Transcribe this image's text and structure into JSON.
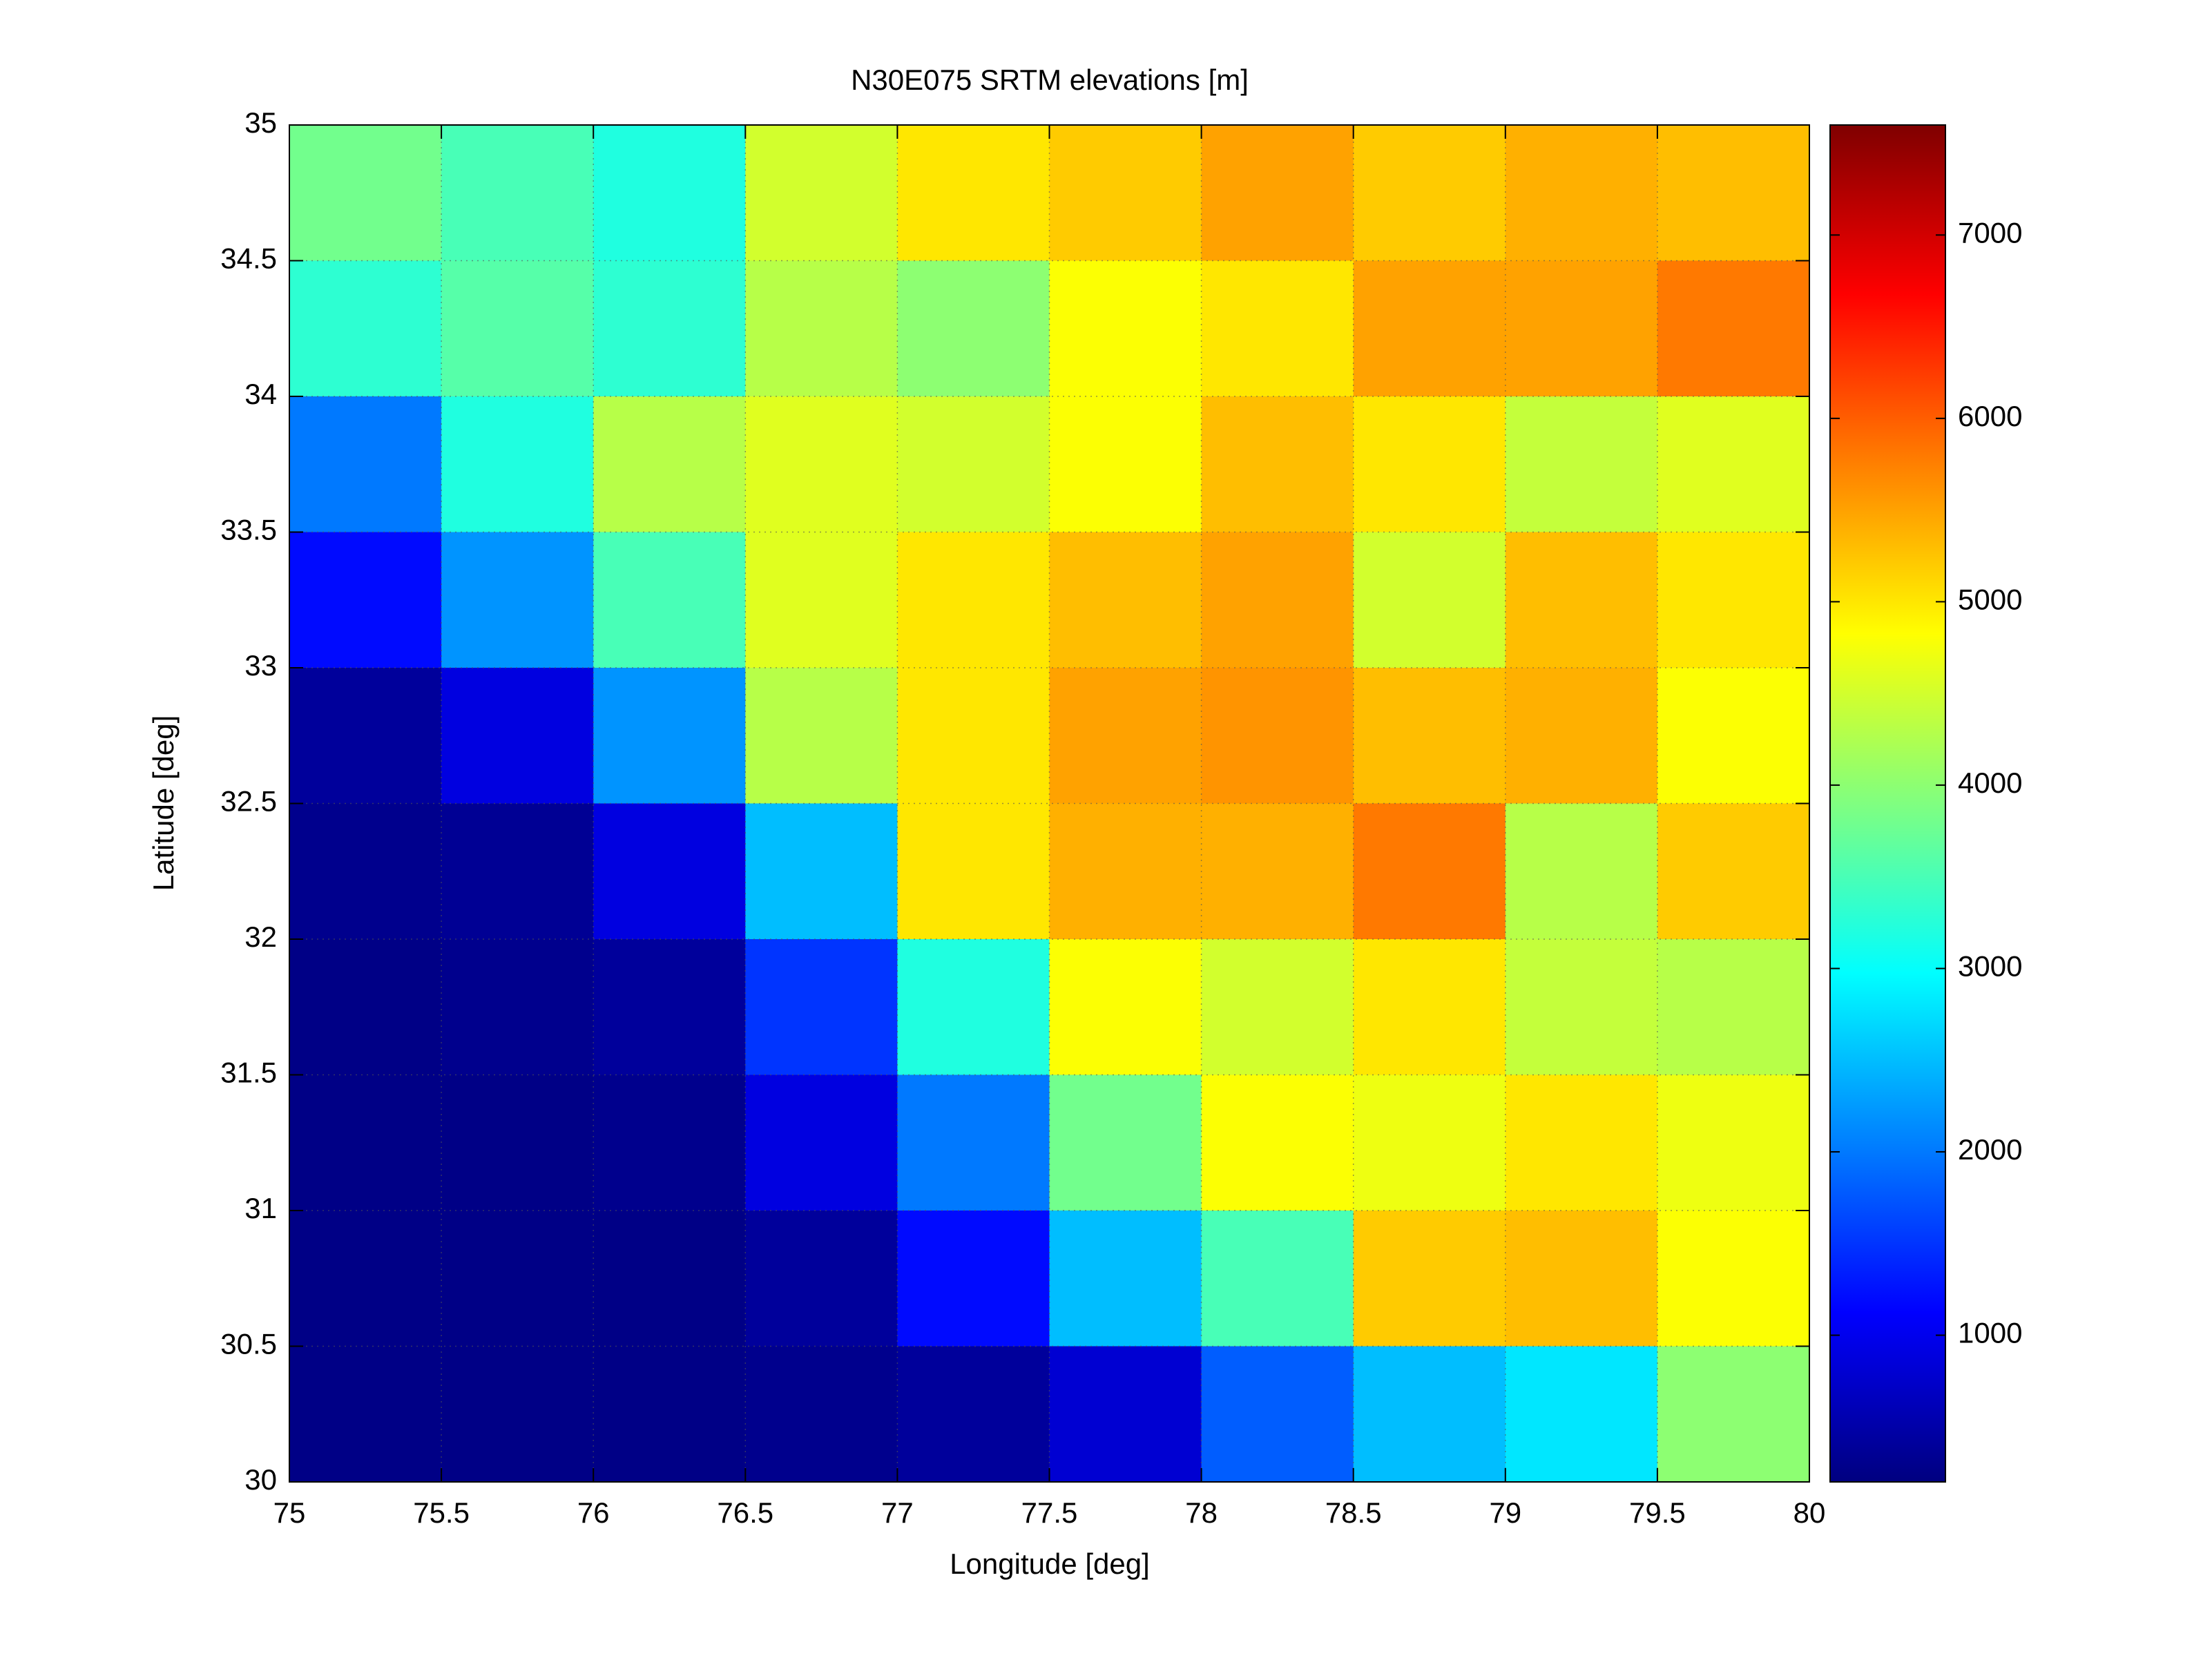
{
  "chart_data": {
    "type": "heatmap",
    "title": "N30E075 SRTM elevations [m]",
    "xlabel": "Longitude [deg]",
    "ylabel": "Latitude [deg]",
    "xlim": [
      75,
      80
    ],
    "ylim": [
      30,
      35
    ],
    "xticks": [
      75,
      75.5,
      76,
      76.5,
      77,
      77.5,
      78,
      78.5,
      79,
      79.5,
      80
    ],
    "yticks": [
      30,
      30.5,
      31,
      31.5,
      32,
      32.5,
      33,
      33.5,
      34,
      34.5,
      35
    ],
    "x": [
      75.25,
      75.75,
      76.25,
      76.75,
      77.25,
      77.75,
      78.25,
      78.75,
      79.25,
      79.75
    ],
    "y": [
      34.75,
      34.25,
      33.75,
      33.25,
      32.75,
      32.25,
      31.75,
      31.25,
      30.75,
      30.25
    ],
    "z": [
      [
        3800,
        3500,
        3200,
        4500,
        5000,
        5200,
        5500,
        5200,
        5400,
        5300
      ],
      [
        3300,
        3600,
        3300,
        4300,
        4000,
        4800,
        5000,
        5500,
        5500,
        5800
      ],
      [
        2000,
        3200,
        4300,
        4600,
        4500,
        4800,
        5300,
        5000,
        4400,
        4600
      ],
      [
        1200,
        2200,
        3500,
        4600,
        5000,
        5300,
        5500,
        4500,
        5300,
        5000
      ],
      [
        400,
        900,
        2200,
        4300,
        5000,
        5500,
        5600,
        5300,
        5400,
        4800
      ],
      [
        300,
        350,
        900,
        2500,
        5000,
        5400,
        5400,
        5800,
        4300,
        5200
      ],
      [
        250,
        300,
        400,
        1500,
        3200,
        4800,
        4500,
        5000,
        4400,
        4300
      ],
      [
        250,
        250,
        300,
        900,
        2000,
        3800,
        4800,
        4700,
        5000,
        4700
      ],
      [
        250,
        250,
        250,
        400,
        1200,
        2500,
        3500,
        5200,
        5300,
        4800
      ],
      [
        250,
        250,
        250,
        300,
        400,
        800,
        1800,
        2500,
        2800,
        4000
      ]
    ],
    "colormap": "jet",
    "clim": [
      200,
      7600
    ],
    "cticks": [
      1000,
      2000,
      3000,
      4000,
      5000,
      6000,
      7000
    ],
    "grid": true
  }
}
